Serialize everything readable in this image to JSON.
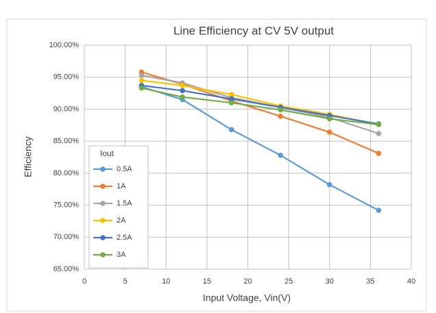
{
  "chart_data": {
    "type": "line",
    "title": "Line Efficiency at CV 5V output",
    "x_label": "Input Voltage, Vin(V)",
    "y_label": "Efficiency",
    "x": [
      7,
      12,
      18,
      24,
      30,
      36
    ],
    "series": [
      {
        "name": "0.5A",
        "color": "#5b9bd5",
        "values": [
          93.5,
          91.5,
          86.8,
          82.8,
          78.2,
          74.2
        ]
      },
      {
        "name": "1A",
        "color": "#ed7d31",
        "values": [
          95.8,
          93.9,
          91.3,
          88.9,
          86.4,
          83.1
        ]
      },
      {
        "name": "1.5A",
        "color": "#a5a5a5",
        "values": [
          95.3,
          94.1,
          91.8,
          90.3,
          88.7,
          86.2
        ]
      },
      {
        "name": "2A",
        "color": "#ffc000",
        "values": [
          94.5,
          93.7,
          92.3,
          90.5,
          89.2,
          87.6
        ]
      },
      {
        "name": "2.5A",
        "color": "#4472c4",
        "values": [
          93.7,
          92.9,
          91.6,
          90.3,
          89.0,
          87.7
        ]
      },
      {
        "name": "3A",
        "color": "#70ad47",
        "values": [
          93.3,
          91.9,
          91.0,
          89.9,
          88.5,
          87.6
        ]
      }
    ],
    "xlim": [
      0,
      40
    ],
    "xticks": [
      0,
      5,
      10,
      15,
      20,
      25,
      30,
      35,
      40
    ],
    "ylim": [
      65,
      100
    ],
    "yticks": [
      {
        "value": 65,
        "label": "65.00%"
      },
      {
        "value": 70,
        "label": "70.00%"
      },
      {
        "value": 75,
        "label": "75.00%"
      },
      {
        "value": 80,
        "label": "80.00%"
      },
      {
        "value": 85,
        "label": "85.00%"
      },
      {
        "value": 90,
        "label": "90.00%"
      },
      {
        "value": 95,
        "label": "95.00%"
      },
      {
        "value": 100,
        "label": "100.00%"
      }
    ],
    "grid": true,
    "legend": {
      "title": "Iout",
      "position": "lower left"
    }
  }
}
